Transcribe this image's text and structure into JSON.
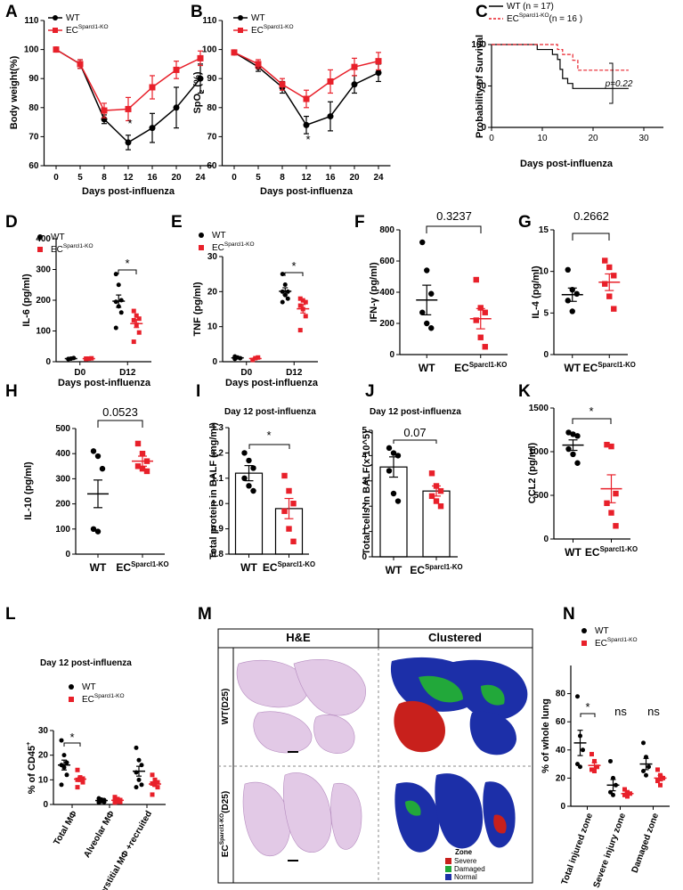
{
  "chart_data": [
    {
      "label": "A",
      "type": "line",
      "y_label": "Body weight(%)",
      "x_label": "Days post-influenza",
      "categories": [
        "0",
        "5",
        "8",
        "12",
        "16",
        "20",
        "24"
      ],
      "ylim": [
        60,
        110
      ],
      "yticks": [
        60,
        70,
        80,
        90,
        100,
        110
      ],
      "series": [
        {
          "name": "WT",
          "color": "#000000",
          "values": [
            100,
            95,
            76,
            68,
            73,
            80,
            90
          ],
          "errors": [
            0.5,
            1.5,
            1.5,
            2.5,
            5,
            7,
            5
          ]
        },
        {
          "name": "ECSparcl1-KO",
          "color": "#e8202a",
          "values": [
            100,
            95,
            79,
            79.5,
            87,
            93,
            97
          ],
          "errors": [
            0.5,
            1.5,
            2.5,
            4,
            4,
            3,
            2.5
          ]
        }
      ],
      "annotations": [
        "*"
      ]
    },
    {
      "label": "B",
      "type": "line",
      "y_label": "SpO2 (%)",
      "x_label": "Days post-influenza",
      "categories": [
        "0",
        "5",
        "8",
        "12",
        "16",
        "20",
        "24"
      ],
      "ylim": [
        60,
        110
      ],
      "yticks": [
        60,
        70,
        80,
        90,
        100,
        110
      ],
      "series": [
        {
          "name": "WT",
          "color": "#000000",
          "values": [
            99,
            94,
            87,
            74,
            77,
            88,
            92
          ],
          "errors": [
            0.5,
            1.5,
            2,
            3,
            5,
            3,
            3
          ]
        },
        {
          "name": "ECSparcl1-KO",
          "color": "#e8202a",
          "values": [
            99,
            95,
            88,
            83,
            89,
            94,
            96
          ],
          "errors": [
            0.5,
            1.5,
            2,
            3,
            4,
            3,
            3
          ]
        }
      ],
      "annotations": [
        "*"
      ]
    },
    {
      "label": "C",
      "type": "step",
      "y_label": "Probability of Survival",
      "x_label": "Days post-influenza",
      "xlim": [
        0,
        30
      ],
      "xticks": [
        0,
        10,
        20,
        30
      ],
      "ylim": [
        0,
        100
      ],
      "yticks": [
        0,
        50,
        100
      ],
      "series": [
        {
          "name": "WT (n = 17)",
          "color": "#000000",
          "line_style": "solid",
          "x": [
            0,
            9,
            12,
            13,
            13.5,
            14,
            15,
            16,
            27
          ],
          "values": [
            100,
            94,
            88,
            82,
            70,
            59,
            53,
            47,
            47
          ]
        },
        {
          "name": "ECSparcl1-KO(n = 16 )",
          "color": "#e8202a",
          "line_style": "dashed",
          "x": [
            0,
            13,
            14,
            16,
            17,
            27
          ],
          "values": [
            100,
            94,
            88,
            81,
            69,
            69
          ]
        }
      ],
      "annotations": [
        "p=0.22"
      ]
    },
    {
      "label": "D",
      "type": "dot_grouped",
      "y_label": "IL-6 (pg/ml)",
      "x_label": "Days post-influenza",
      "categories": [
        "D0",
        "D12"
      ],
      "ylim": [
        0,
        400
      ],
      "yticks": [
        0,
        100,
        200,
        300,
        400
      ],
      "series": [
        {
          "name": "WT",
          "color": "#000000",
          "points": [
            [
              8,
              10,
              12,
              9
            ],
            [
              285,
              250,
              200,
              195,
              180,
              160,
              110
            ]
          ],
          "mean": [
            10,
            197
          ],
          "sem": [
            1,
            20
          ]
        },
        {
          "name": "ECSparcl1-KO",
          "color": "#e8202a",
          "points": [
            [
              10,
              10,
              11,
              9
            ],
            [
              165,
              150,
              140,
              135,
              120,
              95,
              65
            ]
          ],
          "mean": [
            10,
            124
          ],
          "sem": [
            1,
            13
          ]
        }
      ],
      "annotations": [
        "*"
      ]
    },
    {
      "label": "E",
      "type": "dot_grouped",
      "y_label": "TNF (pg/ml)",
      "x_label": "Days post-influenza",
      "categories": [
        "D0",
        "D12"
      ],
      "ylim": [
        0,
        30
      ],
      "yticks": [
        0,
        10,
        20,
        30
      ],
      "series": [
        {
          "name": "WT",
          "color": "#000000",
          "points": [
            [
              1.5,
              1.2,
              1,
              0.8
            ],
            [
              25,
              22,
              20,
              20,
              19,
              18,
              17
            ]
          ],
          "mean": [
            1.1,
            20.1
          ],
          "sem": [
            0.15,
            1
          ]
        },
        {
          "name": "ECSparcl1-KO",
          "color": "#e8202a",
          "points": [
            [
              0.5,
              1,
              1.2
            ],
            [
              18,
              17.5,
              17,
              16,
              15,
              13,
              9
            ]
          ],
          "mean": [
            0.9,
            15.1
          ],
          "sem": [
            0.2,
            1.2
          ]
        }
      ],
      "annotations": [
        "*"
      ]
    },
    {
      "label": "F",
      "type": "dot",
      "y_label": "IFN-γ (pg/ml)",
      "ylim": [
        0,
        800
      ],
      "yticks": [
        0,
        200,
        400,
        600,
        800
      ],
      "groups": [
        {
          "name": "WT",
          "color": "#000000",
          "points": [
            720,
            540,
            390,
            270,
            200,
            170
          ],
          "mean": 350,
          "sem": 95
        },
        {
          "name": "ECSparcl1-KO",
          "color": "#e8202a",
          "points": [
            480,
            300,
            270,
            220,
            110,
            50
          ],
          "mean": 230,
          "sem": 65
        }
      ],
      "annotations": [
        "0.3237"
      ]
    },
    {
      "label": "G",
      "type": "dot",
      "y_label": "IL-4 (pg/ml)",
      "ylim": [
        0,
        15
      ],
      "yticks": [
        0,
        5,
        10,
        15
      ],
      "groups": [
        {
          "name": "WT",
          "color": "#000000",
          "points": [
            10.2,
            7.8,
            7.3,
            6.5,
            5.2
          ],
          "mean": 7.2,
          "sem": 0.8
        },
        {
          "name": "ECSparcl1-KO",
          "color": "#e8202a",
          "points": [
            11.3,
            10.5,
            9.5,
            8.5,
            7,
            5.5
          ],
          "mean": 8.7,
          "sem": 1
        }
      ],
      "annotations": [
        "0.2662"
      ]
    },
    {
      "label": "H",
      "type": "dot",
      "y_label": "IL-10 (pg/ml)",
      "ylim": [
        0,
        500
      ],
      "yticks": [
        0,
        100,
        200,
        300,
        400,
        500
      ],
      "groups": [
        {
          "name": "WT",
          "color": "#000000",
          "points": [
            410,
            390,
            340,
            100,
            90
          ],
          "mean": 240,
          "sem": 55
        },
        {
          "name": "ECSparcl1-KO",
          "color": "#e8202a",
          "points": [
            440,
            400,
            370,
            350,
            340,
            330
          ],
          "mean": 370,
          "sem": 20
        }
      ],
      "annotations": [
        "0.0523"
      ]
    },
    {
      "label": "I",
      "type": "bar",
      "title": "Day 12 post-influenza",
      "y_label": "Total protein in BALF (mg/ml)",
      "ylim": [
        0.8,
        1.3
      ],
      "yticks": [
        0.8,
        0.9,
        {
          "value": 1,
          "label": "1.0"
        },
        1.1,
        1.2,
        1.3
      ],
      "groups": [
        {
          "name": "WT",
          "color": "#000000",
          "points": [
            1.2,
            1.17,
            1.14,
            1.1,
            1.07,
            1.05
          ],
          "mean": 1.12,
          "sem": 0.03
        },
        {
          "name": "ECSparcl1-KO",
          "color": "#e8202a",
          "points": [
            1.11,
            1.05,
            1.0,
            0.97,
            0.9,
            0.85
          ],
          "mean": 0.98,
          "sem": 0.04
        }
      ],
      "annotations": [
        "*"
      ]
    },
    {
      "label": "J",
      "type": "bar",
      "title": "Day 12 post-influenza",
      "y_label": "Total cells in BALF(x 10^5)",
      "ylim": [
        0,
        5
      ],
      "yticks": [
        0,
        1,
        2,
        3,
        4,
        5
      ],
      "groups": [
        {
          "name": "WT",
          "color": "#000000",
          "points": [
            4.3,
            4.1,
            4.0,
            3.4,
            2.5,
            2.2
          ],
          "mean": 3.55,
          "sem": 0.4
        },
        {
          "name": "ECSparcl1-KO",
          "color": "#e8202a",
          "points": [
            3.3,
            2.8,
            2.6,
            2.4,
            2.2,
            2.0
          ],
          "mean": 2.6,
          "sem": 0.2
        }
      ],
      "annotations": [
        "0.07"
      ]
    },
    {
      "label": "K",
      "type": "dot",
      "y_label": "CCL2 (pg/ml)",
      "ylim": [
        0,
        1500
      ],
      "yticks": [
        0,
        500,
        1000,
        1500
      ],
      "groups": [
        {
          "name": "WT",
          "color": "#000000",
          "points": [
            1220,
            1200,
            1180,
            1030,
            970,
            870
          ],
          "mean": 1075,
          "sem": 60
        },
        {
          "name": "ECSparcl1-KO",
          "color": "#e8202a",
          "points": [
            1080,
            1060,
            520,
            410,
            300,
            150
          ],
          "mean": 575,
          "sem": 160
        }
      ],
      "annotations": [
        "*"
      ]
    },
    {
      "label": "L",
      "type": "dot_grouped",
      "title": "Day 12 post-influenza",
      "y_label": "% of CD45+",
      "categories": [
        "Total MΦ",
        "Alveolar MΦ",
        "Interstitial MΦ +recruited"
      ],
      "ylim": [
        0,
        30
      ],
      "yticks": [
        0,
        10,
        20,
        30
      ],
      "series": [
        {
          "name": "WT",
          "color": "#000000",
          "points": [
            [
              26,
              20,
              17,
              16,
              15,
              12,
              8
            ],
            [
              2.5,
              2,
              1.8,
              1.5,
              1.3,
              1,
              0.8
            ],
            [
              23,
              18,
              16,
              13,
              10,
              8,
              7
            ]
          ],
          "mean": [
            16,
            1.6,
            13.5
          ],
          "sem": [
            2,
            0.3,
            2
          ]
        },
        {
          "name": "ECSparcl1-KO",
          "color": "#e8202a",
          "points": [
            [
              14,
              11,
              10.5,
              10,
              10,
              9,
              7
            ],
            [
              3,
              2.2,
              1.8,
              1.5,
              1.2,
              1,
              0.8
            ],
            [
              12,
              10,
              9,
              8.5,
              8,
              7,
              4
            ]
          ],
          "mean": [
            10.3,
            1.7,
            8.3
          ],
          "sem": [
            0.8,
            0.3,
            0.9
          ]
        }
      ],
      "annotations": [
        "*"
      ]
    },
    {
      "label": "N",
      "type": "dot_grouped",
      "y_label": "% of whole lung",
      "categories": [
        "Total injured zone",
        "Severe injury zone",
        "Damaged zone"
      ],
      "ylim": [
        0,
        100
      ],
      "yticks": [
        0,
        20,
        40,
        60,
        80
      ],
      "series": [
        {
          "name": "WT",
          "color": "#000000",
          "points": [
            [
              78,
              50,
              40,
              30,
              28
            ],
            [
              32,
              20,
              15,
              10,
              8
            ],
            [
              45,
              35,
              28,
              25,
              22
            ]
          ],
          "mean": [
            45,
            15,
            30
          ],
          "sem": [
            9,
            4,
            4
          ]
        },
        {
          "name": "ECSparcl1-KO",
          "color": "#e8202a",
          "points": [
            [
              37,
              32,
              28,
              26,
              25
            ],
            [
              12,
              10,
              9,
              8,
              7
            ],
            [
              26,
              22,
              20,
              18,
              15
            ]
          ],
          "mean": [
            29,
            9,
            20
          ],
          "sem": [
            2,
            1,
            2
          ]
        }
      ],
      "annotations": [
        "*",
        "ns",
        "ns"
      ]
    }
  ],
  "diagram": {
    "label": "M",
    "headers": [
      "H&E",
      "Clustered"
    ],
    "rows": [
      "WT(D25)",
      "ECSparcl1-KO(D25)"
    ],
    "legend_title": "Zone",
    "legend": [
      "Severe",
      "Damaged",
      "Normal"
    ]
  }
}
